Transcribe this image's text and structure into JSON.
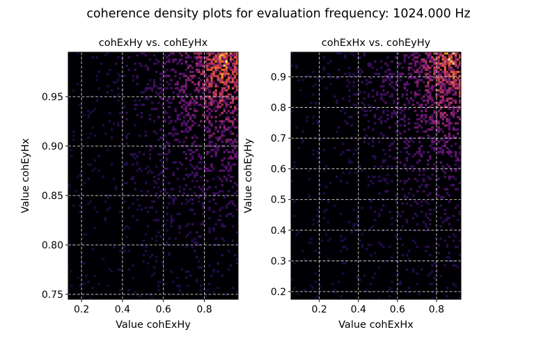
{
  "figure": {
    "suptitle": "coherence density plots for evaluation frequency: 1024.000 Hz"
  },
  "chart_data": [
    {
      "type": "heatmap",
      "title": "cohExHy vs. cohEyHx",
      "xlabel": "Value cohExHy",
      "ylabel": "Value cohEyHx",
      "xlim": [
        0.135,
        0.965
      ],
      "ylim": [
        0.745,
        0.995
      ],
      "xticks": [
        0.2,
        0.4,
        0.6,
        0.8
      ],
      "xtick_labels": [
        "0.2",
        "0.4",
        "0.6",
        "0.8"
      ],
      "yticks": [
        0.75,
        0.8,
        0.85,
        0.9,
        0.95
      ],
      "ytick_labels": [
        "0.75",
        "0.80",
        "0.85",
        "0.90",
        "0.95"
      ],
      "grid": true,
      "colormap": "inferno",
      "density_peak": [
        0.9,
        0.985
      ],
      "background_color": "#000004"
    },
    {
      "type": "heatmap",
      "title": "cohExHx vs. cohEyHy",
      "xlabel": "Value cohExHx",
      "ylabel": "Value cohEyHy",
      "xlim": [
        0.055,
        0.925
      ],
      "ylim": [
        0.175,
        0.98
      ],
      "xticks": [
        0.2,
        0.4,
        0.6,
        0.8
      ],
      "xtick_labels": [
        "0.2",
        "0.4",
        "0.6",
        "0.8"
      ],
      "yticks": [
        0.2,
        0.3,
        0.4,
        0.5,
        0.6,
        0.7,
        0.8,
        0.9
      ],
      "ytick_labels": [
        "0.2",
        "0.3",
        "0.4",
        "0.5",
        "0.6",
        "0.7",
        "0.8",
        "0.9"
      ],
      "grid": true,
      "colormap": "inferno",
      "density_peak": [
        0.88,
        0.96
      ],
      "background_color": "#000004"
    }
  ]
}
